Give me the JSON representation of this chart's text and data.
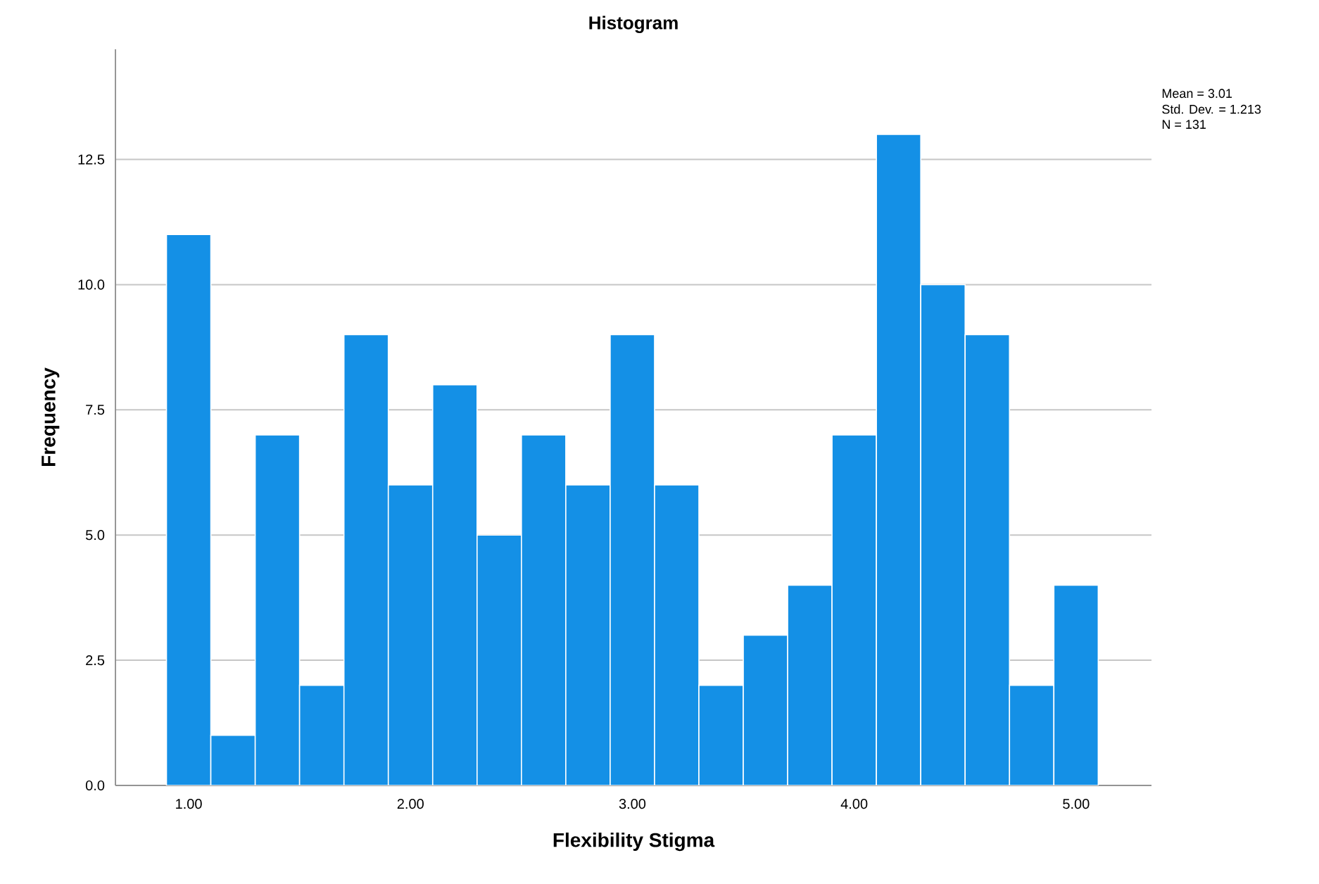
{
  "chart_data": {
    "type": "histogram",
    "title": "Histogram",
    "xlabel": "Flexibility Stigma",
    "ylabel": "Frequency",
    "bins": [
      0.9,
      1.1,
      1.3,
      1.5,
      1.7,
      1.9,
      2.1,
      2.3,
      2.5,
      2.7,
      2.9,
      3.1,
      3.3,
      3.5,
      3.7,
      3.9,
      4.1,
      4.3,
      4.5,
      4.7,
      4.9,
      5.1
    ],
    "values": [
      11,
      1,
      7,
      2,
      9,
      6,
      8,
      5,
      7,
      6,
      9,
      6,
      2,
      3,
      4,
      7,
      13,
      10,
      9,
      2,
      4
    ],
    "color": "#1490e6",
    "xlim": [
      0.67,
      5.34
    ],
    "ylim": [
      0,
      14.7
    ],
    "xticks": [
      {
        "value": 1,
        "label": "1.00"
      },
      {
        "value": 2,
        "label": "2.00"
      },
      {
        "value": 3,
        "label": "3.00"
      },
      {
        "value": 4,
        "label": "4.00"
      },
      {
        "value": 5,
        "label": "5.00"
      }
    ],
    "yticks": [
      {
        "value": 0,
        "label": "0.0"
      },
      {
        "value": 2.5,
        "label": "2.5"
      },
      {
        "value": 5,
        "label": "5.0"
      },
      {
        "value": 7.5,
        "label": "7.5"
      },
      {
        "value": 10,
        "label": "10.0"
      },
      {
        "value": 12.5,
        "label": "12.5"
      }
    ],
    "grid": "y",
    "annotations": [
      "Mean = 3.01",
      "Std. Dev. = 1.213",
      "N = 131"
    ]
  }
}
